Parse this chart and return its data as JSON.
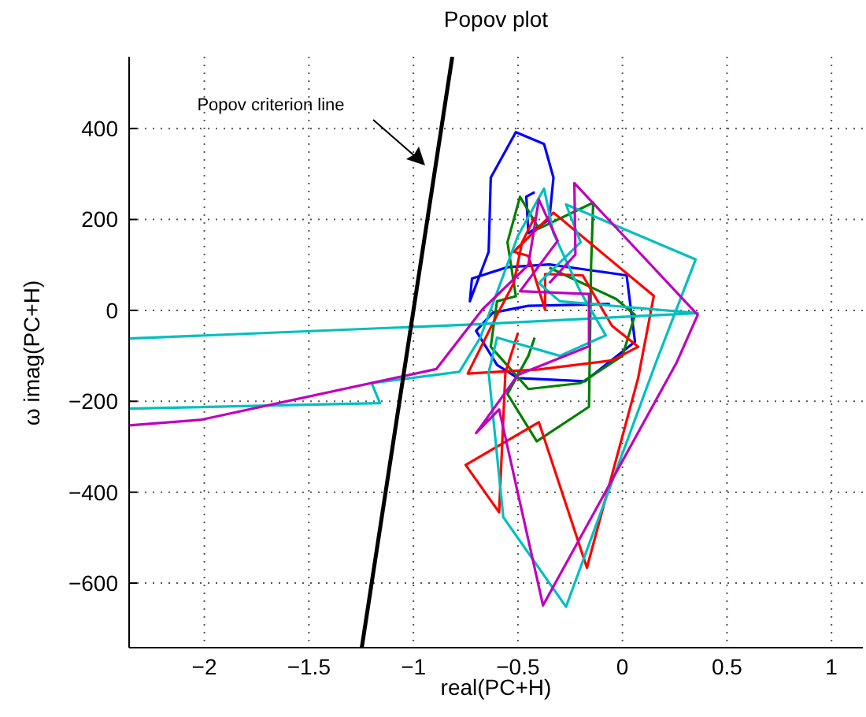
{
  "chart_data": {
    "type": "line",
    "title": "Popov plot",
    "xlabel": "real(PC+H)",
    "ylabel": "ω imag(PC+H)",
    "xlim": [
      -2.36,
      1.15
    ],
    "ylim": [
      -742,
      558
    ],
    "xticks": [
      -2,
      -1.5,
      -1,
      -0.5,
      0,
      0.5,
      1
    ],
    "yticks": [
      -600,
      -400,
      -200,
      0,
      200,
      400
    ],
    "grid": true,
    "marker": "none",
    "line_style": "solid",
    "annotations": [
      "Popov criterion line"
    ],
    "series": [
      {
        "color": "#0000ff",
        "x": [
          -0.06,
          -0.45,
          -0.62,
          -0.7,
          -0.6,
          -0.5,
          -0.18,
          0.06,
          0.02,
          -0.35,
          -0.55,
          -0.72,
          -0.73,
          -0.64,
          -0.63,
          -0.51,
          -0.375,
          -0.33,
          -0.35,
          -0.45,
          -0.46,
          -0.42
        ],
        "values": [
          14,
          10,
          -5,
          -45,
          -120,
          -149,
          -156,
          -69,
          77,
          101,
          95,
          70,
          20,
          129,
          292,
          392,
          366,
          292,
          200,
          170,
          250,
          260
        ]
      },
      {
        "color": "#008000",
        "x": [
          -0.35,
          -0.03,
          0.06,
          0.0,
          -0.2,
          -0.45,
          -0.63,
          -0.6,
          -0.51,
          -0.55,
          -0.49,
          -0.4,
          -0.14,
          -0.15,
          -0.16,
          -0.41,
          -0.55,
          -0.45,
          -0.42
        ],
        "values": [
          94,
          25,
          -10,
          -100,
          -160,
          -173,
          -80,
          20,
          31,
          150,
          250,
          180,
          237,
          100,
          -212,
          -288,
          -184,
          -100,
          -60
        ]
      },
      {
        "color": "#ff0000",
        "x": [
          -0.42,
          -0.48,
          -0.52,
          -0.6,
          -0.74,
          -0.4,
          -0.05,
          0.075,
          -0.05,
          -0.19,
          -0.37,
          -0.37,
          -0.45,
          -0.52,
          -0.33,
          0.15,
          0.075,
          -0.17,
          -0.4,
          -0.75,
          -0.59,
          -0.56,
          -0.5
        ],
        "values": [
          205,
          150,
          60,
          -10,
          -139,
          -130,
          -110,
          -80,
          -34,
          77,
          80,
          1,
          120,
          129,
          215,
          32,
          -149,
          -566,
          -246,
          -340,
          -444,
          -137,
          -50
        ]
      },
      {
        "color": "#00bfbf",
        "x": [
          -2.36,
          -1.16,
          -1.2,
          -0.78,
          -0.68,
          -0.5,
          -0.375,
          -0.33,
          -0.2,
          -0.08,
          -0.3,
          -0.6,
          -0.64,
          -0.57,
          -0.27,
          0.16,
          0.35,
          -0.27,
          -0.2,
          -0.4,
          -0.3,
          0.36,
          -0.72,
          -2.36
        ],
        "values": [
          -216,
          -204,
          -160,
          -135,
          -60,
          164,
          268,
          170,
          40,
          -55,
          -100,
          -60,
          -137,
          -455,
          -652,
          -115,
          112,
          233,
          150,
          60,
          20,
          -6,
          -31,
          -62
        ]
      },
      {
        "color": "#bf00bf",
        "x": [
          -2.36,
          -2.02,
          -0.89,
          -0.67,
          -0.45,
          -0.4,
          -0.31,
          -0.49,
          -0.16,
          -0.16,
          -0.5,
          -0.7,
          -0.59,
          -0.38,
          0.26,
          0.36,
          -0.23,
          -0.225,
          -0.35
        ],
        "values": [
          -253,
          -241,
          -129,
          2,
          100,
          244,
          153,
          42,
          36,
          -79,
          -142,
          -270,
          -218,
          -649,
          -114,
          -10,
          280,
          123,
          60
        ]
      },
      {
        "color": "#000000",
        "x": [
          -1.247,
          -0.814
        ],
        "values": [
          -742,
          558
        ]
      }
    ]
  }
}
